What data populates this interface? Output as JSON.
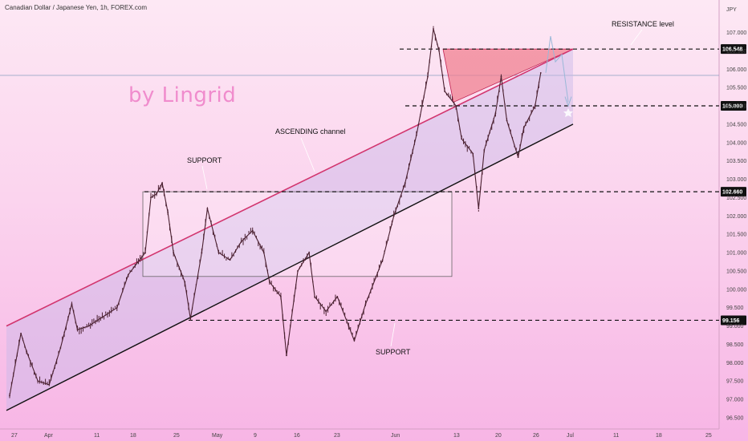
{
  "header": {
    "title": "Canadian Dollar / Japanese Yen, 1h, FOREX.com"
  },
  "watermark": "by Lingrid",
  "annotations": {
    "resistance": "RESISTANCE level",
    "ascending": "ASCENDING channel",
    "support_top": "SUPPORT",
    "support_bottom": "SUPPORT"
  },
  "colors": {
    "candles": "#4a2030",
    "upper_channel": "#d2356e",
    "lower_channel": "#111111",
    "channel_fill": "#c8b8e8",
    "triangle": "#f07a8a",
    "projection": "#9ab8d8",
    "level_lines": "#111111"
  },
  "chart_data": {
    "type": "line",
    "title": "Canadian Dollar / Japanese Yen, 1h, FOREX.com",
    "ylabel": "JPY",
    "xlabel": "",
    "ylim": [
      96.5,
      107.4
    ],
    "y_ticks": [
      96.5,
      97.0,
      97.5,
      98.0,
      98.5,
      99.0,
      99.5,
      100.0,
      100.5,
      101.0,
      101.5,
      102.0,
      102.5,
      103.0,
      103.5,
      104.0,
      104.5,
      105.0,
      105.5,
      106.0,
      106.5,
      107.0
    ],
    "y_tick_labels": [
      "96.500",
      "97.000",
      "97.500",
      "98.000",
      "98.500",
      "99.000",
      "99.500",
      "100.000",
      "100.500",
      "101.000",
      "101.500",
      "102.000",
      "102.500",
      "103.000",
      "103.500",
      "104.000",
      "104.500",
      "105.000",
      "105.500",
      "106.000",
      "106.500",
      "107.000"
    ],
    "x_tick_labels": [
      "27",
      "Apr",
      "11",
      "18",
      "25",
      "May",
      "9",
      "16",
      "23",
      "Jun",
      "13",
      "20",
      "26",
      "Jul",
      "11",
      "18",
      "25"
    ],
    "price_levels": [
      {
        "label": "106.548",
        "value": 106.548,
        "color": "#111111"
      },
      {
        "label": "105.000",
        "value": 105.0,
        "color": "#111111"
      },
      {
        "label": "102.660",
        "value": 102.66,
        "color": "#111111"
      },
      {
        "label": "99.156",
        "value": 99.156,
        "color": "#111111"
      }
    ],
    "series": [
      {
        "values": [
          {
            "x": "Mar 25",
            "y": 97.1
          },
          {
            "x": "Mar 27",
            "y": 98.8
          },
          {
            "x": "Mar 28",
            "y": 98.3
          },
          {
            "x": "Mar 30",
            "y": 97.5
          },
          {
            "x": "Apr 1",
            "y": 97.4
          },
          {
            "x": "Apr 3",
            "y": 98.4
          },
          {
            "x": "Apr 5",
            "y": 99.6
          },
          {
            "x": "Apr 6",
            "y": 98.9
          },
          {
            "x": "Apr 8",
            "y": 99.0
          },
          {
            "x": "Apr 11",
            "y": 99.3
          },
          {
            "x": "Apr 13",
            "y": 99.5
          },
          {
            "x": "Apr 15",
            "y": 100.4
          },
          {
            "x": "Apr 18",
            "y": 101.0
          },
          {
            "x": "Apr 19",
            "y": 102.5
          },
          {
            "x": "Apr 20",
            "y": 102.6
          },
          {
            "x": "Apr 21",
            "y": 102.9
          },
          {
            "x": "Apr 22",
            "y": 102.1
          },
          {
            "x": "Apr 23",
            "y": 101.0
          },
          {
            "x": "Apr 25",
            "y": 100.2
          },
          {
            "x": "Apr 26",
            "y": 99.2
          },
          {
            "x": "Apr 28",
            "y": 101.0
          },
          {
            "x": "Apr 29",
            "y": 102.2
          },
          {
            "x": "May 1",
            "y": 101.0
          },
          {
            "x": "May 3",
            "y": 100.8
          },
          {
            "x": "May 5",
            "y": 101.3
          },
          {
            "x": "May 7",
            "y": 101.6
          },
          {
            "x": "May 9",
            "y": 101.0
          },
          {
            "x": "May 10",
            "y": 100.2
          },
          {
            "x": "May 12",
            "y": 99.8
          },
          {
            "x": "May 13",
            "y": 98.2
          },
          {
            "x": "May 15",
            "y": 100.5
          },
          {
            "x": "May 17",
            "y": 101.0
          },
          {
            "x": "May 18",
            "y": 99.8
          },
          {
            "x": "May 20",
            "y": 99.4
          },
          {
            "x": "May 22",
            "y": 99.8
          },
          {
            "x": "May 24",
            "y": 99.0
          },
          {
            "x": "May 25",
            "y": 98.6
          },
          {
            "x": "May 27",
            "y": 99.6
          },
          {
            "x": "May 30",
            "y": 100.8
          },
          {
            "x": "Jun 1",
            "y": 102.0
          },
          {
            "x": "Jun 3",
            "y": 102.9
          },
          {
            "x": "Jun 5",
            "y": 104.2
          },
          {
            "x": "Jun 7",
            "y": 105.8
          },
          {
            "x": "Jun 8",
            "y": 107.1
          },
          {
            "x": "Jun 9",
            "y": 106.5
          },
          {
            "x": "Jun 10",
            "y": 105.4
          },
          {
            "x": "Jun 12",
            "y": 105.0
          },
          {
            "x": "Jun 13",
            "y": 104.1
          },
          {
            "x": "Jun 15",
            "y": 103.7
          },
          {
            "x": "Jun 16",
            "y": 102.2
          },
          {
            "x": "Jun 17",
            "y": 103.8
          },
          {
            "x": "Jun 19",
            "y": 104.8
          },
          {
            "x": "Jun 20",
            "y": 105.8
          },
          {
            "x": "Jun 21",
            "y": 104.6
          },
          {
            "x": "Jun 23",
            "y": 103.6
          },
          {
            "x": "Jun 24",
            "y": 104.4
          },
          {
            "x": "Jun 26",
            "y": 105.0
          },
          {
            "x": "Jun 27",
            "y": 105.9
          }
        ]
      }
    ],
    "grid": false,
    "legend": "none"
  }
}
